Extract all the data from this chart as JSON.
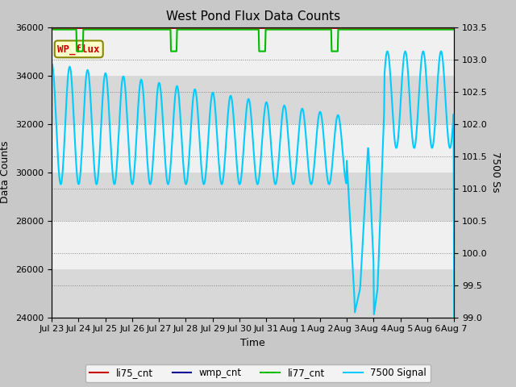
{
  "title": "West Pond Flux Data Counts",
  "xlabel": "Time",
  "ylabel_left": "Data Counts",
  "ylabel_right": "7500 Ss",
  "ylim_left": [
    24000,
    36000
  ],
  "ylim_right": [
    99.0,
    103.5
  ],
  "yticks_left": [
    24000,
    26000,
    28000,
    30000,
    32000,
    34000,
    36000
  ],
  "yticks_right": [
    99.0,
    99.5,
    100.0,
    100.5,
    101.0,
    101.5,
    102.0,
    102.5,
    103.0,
    103.5
  ],
  "bg_color": "#c8c8c8",
  "plot_bg_color": "#f0f0f0",
  "band_color": "#d8d8d8",
  "wp_flux_box_color": "#ffffcc",
  "wp_flux_text_color": "#cc0000",
  "wp_flux_border_color": "#888800",
  "li77_color": "#00bb00",
  "cyan_color": "#00ccff",
  "li75_color": "#cc0000",
  "wmp_color": "#000099",
  "legend_labels": [
    "li75_cnt",
    "wmp_cnt",
    "li77_cnt",
    "7500 Signal"
  ],
  "legend_colors": [
    "#cc0000",
    "#000099",
    "#00bb00",
    "#00ccff"
  ],
  "tick_labels": [
    "Jul 23",
    "Jul 24",
    "Jul 25",
    "Jul 26",
    "Jul 27",
    "Jul 28",
    "Jul 29",
    "Jul 30",
    "Jul 31",
    "Aug 1",
    "Aug 2",
    "Aug 3",
    "Aug 4",
    "Aug 5",
    "Aug 6",
    "Aug 7"
  ]
}
